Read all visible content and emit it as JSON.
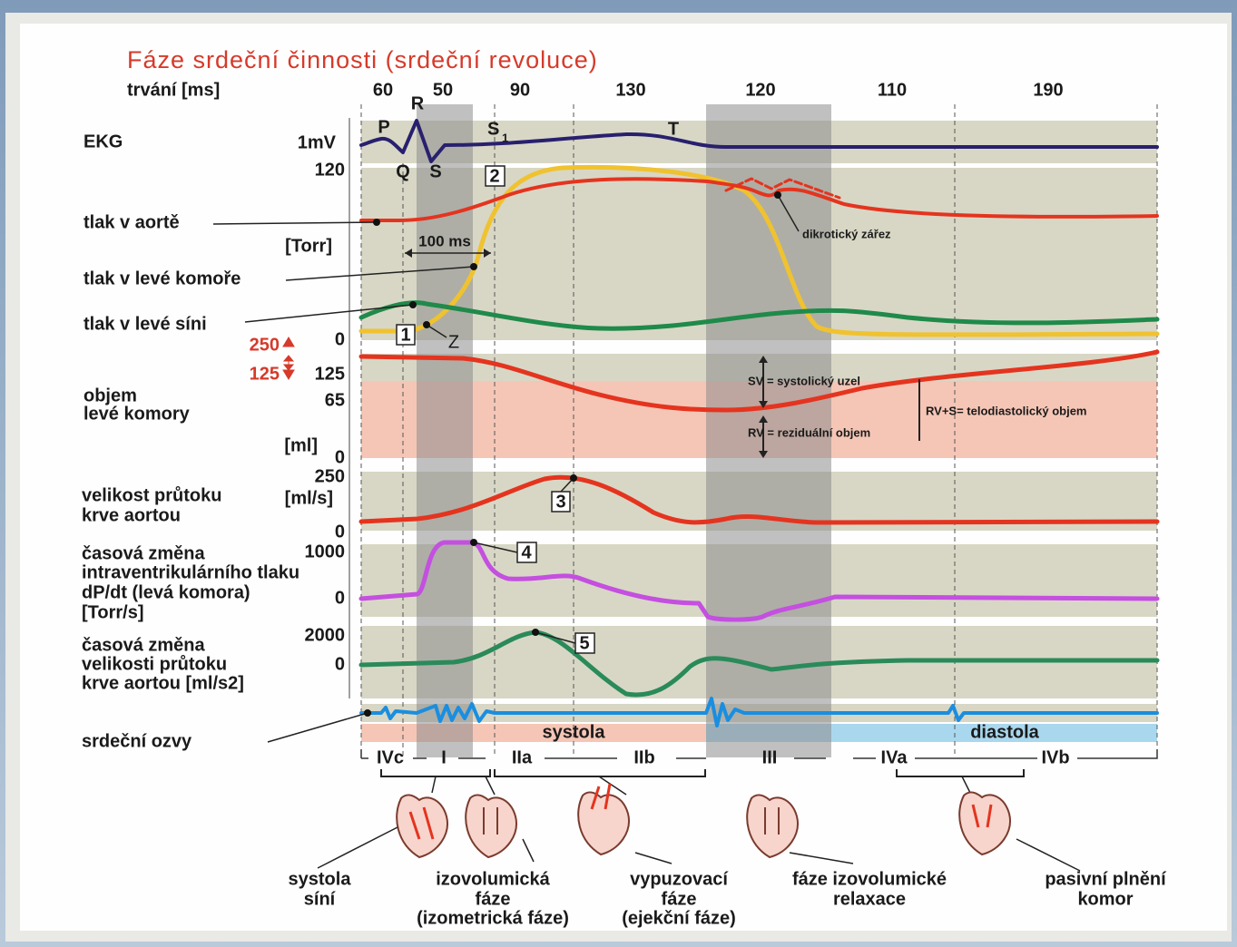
{
  "title": "Fáze srdeční činnosti (srdeční revoluce)",
  "duration": {
    "label": "trvání [ms]",
    "values": [
      "60",
      "50",
      "90",
      "130",
      "120",
      "110",
      "190"
    ]
  },
  "ekg": {
    "label": "EKG",
    "unit": "1mV",
    "waves": [
      "P",
      "R",
      "Q",
      "S",
      "T"
    ],
    "s1": {
      "base": "S",
      "sub": "1"
    }
  },
  "pressure": {
    "labels": [
      "tlak v aortě",
      "tlak v levé komoře",
      "tlak v levé síni"
    ],
    "unit": "[Torr]",
    "ticks": [
      "120",
      "0"
    ],
    "interval": "100 ms",
    "notch": "dikrotický zářez",
    "z": "Z"
  },
  "scale": [
    "250",
    "125"
  ],
  "volume": {
    "label": [
      "objem",
      "levé komory"
    ],
    "unit": "[ml]",
    "ticks": [
      "125",
      "65",
      "0"
    ],
    "sv": "SV = systolický uzel",
    "rv": "RV = reziduální objem",
    "edv": "RV+S= telodiastolický objem"
  },
  "flow": {
    "label": [
      "velikost průtoku",
      "krve aortou"
    ],
    "unit": "[ml/s]",
    "ticks": [
      "250",
      "0"
    ]
  },
  "dpdt": {
    "label": [
      "časová změna",
      "intraventrikulárního tlaku",
      "dP/dt (levá komora)",
      "[Torr/s]"
    ],
    "ticks": [
      "1000",
      "0"
    ]
  },
  "accel": {
    "label": [
      "časová změna",
      "velikosti průtoku",
      "krve aortou [ml/s2]"
    ],
    "ticks": [
      "2000",
      "0"
    ]
  },
  "sounds": {
    "label": "srdeční ozvy",
    "systole": "systola",
    "diastole": "diastola"
  },
  "markers": [
    "1",
    "2",
    "3",
    "4",
    "5"
  ],
  "phases": [
    "IVc",
    "I",
    "IIa",
    "IIb",
    "III",
    "IVa",
    "IVb"
  ],
  "captions": [
    [
      "systola",
      "síní"
    ],
    [
      "izovolumická",
      "fáze",
      "(izometrická fáze)"
    ],
    [
      "vypuzovací",
      "fáze",
      "(ejekční fáze)"
    ],
    [
      "fáze izovolumické",
      "relaxace"
    ],
    [
      "pasivní plnění",
      "komor"
    ]
  ]
}
